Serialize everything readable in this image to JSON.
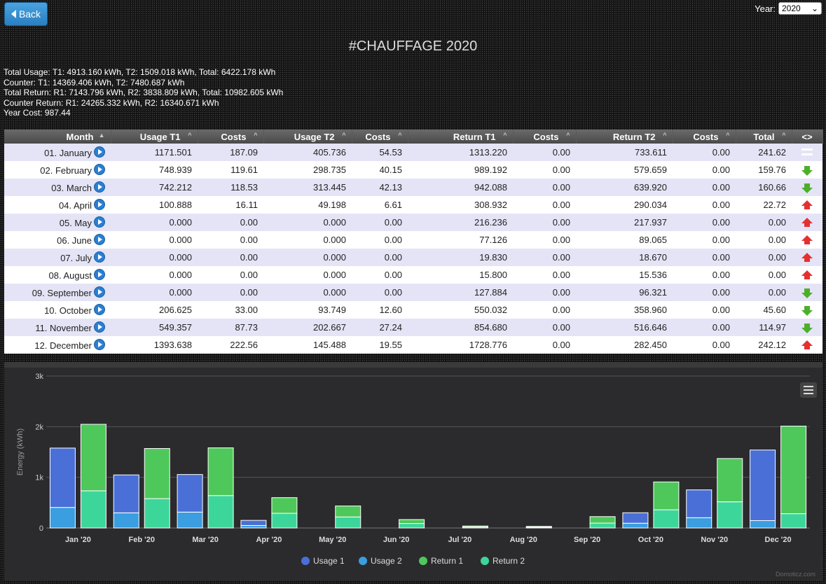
{
  "header": {
    "back_label": "Back",
    "year_label": "Year:",
    "year_value": "2020",
    "title": "#CHAUFFAGE 2020"
  },
  "summary": [
    "Total Usage: T1: 4913.160 kWh, T2: 1509.018 kWh, Total: 6422.178 kWh",
    "Counter: T1: 14369.406 kWh, T2: 7480.687 kWh",
    "Total Return: R1: 7143.796 kWh, R2: 3838.809 kWh, Total: 10982.605 kWh",
    "Counter Return: R1: 24265.332 kWh, R2: 16340.671 kWh",
    "Year Cost: 987.44"
  ],
  "table": {
    "columns": [
      "Month",
      "Usage T1",
      "Costs",
      "Usage T2",
      "Costs",
      "Return T1",
      "Costs",
      "Return T2",
      "Costs",
      "Total",
      "<>"
    ],
    "rows": [
      {
        "month": "01. January",
        "u1": "1171.501",
        "c1": "187.09",
        "u2": "405.736",
        "c2": "54.53",
        "r1": "1313.220",
        "c3": "0.00",
        "r2": "733.611",
        "c4": "0.00",
        "total": "241.62",
        "trend": "equal"
      },
      {
        "month": "02. February",
        "u1": "748.939",
        "c1": "119.61",
        "u2": "298.735",
        "c2": "40.15",
        "r1": "989.192",
        "c3": "0.00",
        "r2": "579.659",
        "c4": "0.00",
        "total": "159.76",
        "trend": "down"
      },
      {
        "month": "03. March",
        "u1": "742.212",
        "c1": "118.53",
        "u2": "313.445",
        "c2": "42.13",
        "r1": "942.088",
        "c3": "0.00",
        "r2": "639.920",
        "c4": "0.00",
        "total": "160.66",
        "trend": "down"
      },
      {
        "month": "04. April",
        "u1": "100.888",
        "c1": "16.11",
        "u2": "49.198",
        "c2": "6.61",
        "r1": "308.932",
        "c3": "0.00",
        "r2": "290.034",
        "c4": "0.00",
        "total": "22.72",
        "trend": "up"
      },
      {
        "month": "05. May",
        "u1": "0.000",
        "c1": "0.00",
        "u2": "0.000",
        "c2": "0.00",
        "r1": "216.236",
        "c3": "0.00",
        "r2": "217.937",
        "c4": "0.00",
        "total": "0.00",
        "trend": "up"
      },
      {
        "month": "06. June",
        "u1": "0.000",
        "c1": "0.00",
        "u2": "0.000",
        "c2": "0.00",
        "r1": "77.126",
        "c3": "0.00",
        "r2": "89.065",
        "c4": "0.00",
        "total": "0.00",
        "trend": "up"
      },
      {
        "month": "07. July",
        "u1": "0.000",
        "c1": "0.00",
        "u2": "0.000",
        "c2": "0.00",
        "r1": "19.830",
        "c3": "0.00",
        "r2": "18.670",
        "c4": "0.00",
        "total": "0.00",
        "trend": "up"
      },
      {
        "month": "08. August",
        "u1": "0.000",
        "c1": "0.00",
        "u2": "0.000",
        "c2": "0.00",
        "r1": "15.800",
        "c3": "0.00",
        "r2": "15.536",
        "c4": "0.00",
        "total": "0.00",
        "trend": "up"
      },
      {
        "month": "09. September",
        "u1": "0.000",
        "c1": "0.00",
        "u2": "0.000",
        "c2": "0.00",
        "r1": "127.884",
        "c3": "0.00",
        "r2": "96.321",
        "c4": "0.00",
        "total": "0.00",
        "trend": "down"
      },
      {
        "month": "10. October",
        "u1": "206.625",
        "c1": "33.00",
        "u2": "93.749",
        "c2": "12.60",
        "r1": "550.032",
        "c3": "0.00",
        "r2": "358.960",
        "c4": "0.00",
        "total": "45.60",
        "trend": "down"
      },
      {
        "month": "11. November",
        "u1": "549.357",
        "c1": "87.73",
        "u2": "202.667",
        "c2": "27.24",
        "r1": "854.680",
        "c3": "0.00",
        "r2": "516.646",
        "c4": "0.00",
        "total": "114.97",
        "trend": "down"
      },
      {
        "month": "12. December",
        "u1": "1393.638",
        "c1": "222.56",
        "u2": "145.488",
        "c2": "19.55",
        "r1": "1728.776",
        "c3": "0.00",
        "r2": "282.450",
        "c4": "0.00",
        "total": "242.12",
        "trend": "up"
      }
    ]
  },
  "chart_data": {
    "type": "bar",
    "stacked": true,
    "categories": [
      "Jan '20",
      "Feb '20",
      "Mar '20",
      "Apr '20",
      "May '20",
      "Jun '20",
      "Jul '20",
      "Aug '20",
      "Sep '20",
      "Oct '20",
      "Nov '20",
      "Dec '20"
    ],
    "ylabel": "Energy (kWh)",
    "ylim": [
      0,
      3000
    ],
    "yticks": [
      0,
      1000,
      2000,
      3000
    ],
    "ytick_labels": [
      "0",
      "1k",
      "2k",
      "3k"
    ],
    "legend_position": "bottom",
    "series": [
      {
        "name": "Usage 1",
        "stack": "usage",
        "color": "#4a6fd6",
        "values": [
          1171.501,
          748.939,
          742.212,
          100.888,
          0,
          0,
          0,
          0,
          0,
          206.625,
          549.357,
          1393.638
        ]
      },
      {
        "name": "Usage 2",
        "stack": "usage",
        "color": "#3a9ee0",
        "values": [
          405.736,
          298.735,
          313.445,
          49.198,
          0,
          0,
          0,
          0,
          0,
          93.749,
          202.667,
          145.488
        ]
      },
      {
        "name": "Return 1",
        "stack": "return",
        "color": "#4ec85a",
        "values": [
          1313.22,
          989.192,
          942.088,
          308.932,
          216.236,
          77.126,
          19.83,
          15.8,
          127.884,
          550.032,
          854.68,
          1728.776
        ]
      },
      {
        "name": "Return 2",
        "stack": "return",
        "color": "#3dd69a",
        "values": [
          733.611,
          579.659,
          639.92,
          290.034,
          217.937,
          89.065,
          18.67,
          15.536,
          96.321,
          358.96,
          516.646,
          282.45
        ]
      }
    ],
    "credit": "Domoticz.com"
  }
}
